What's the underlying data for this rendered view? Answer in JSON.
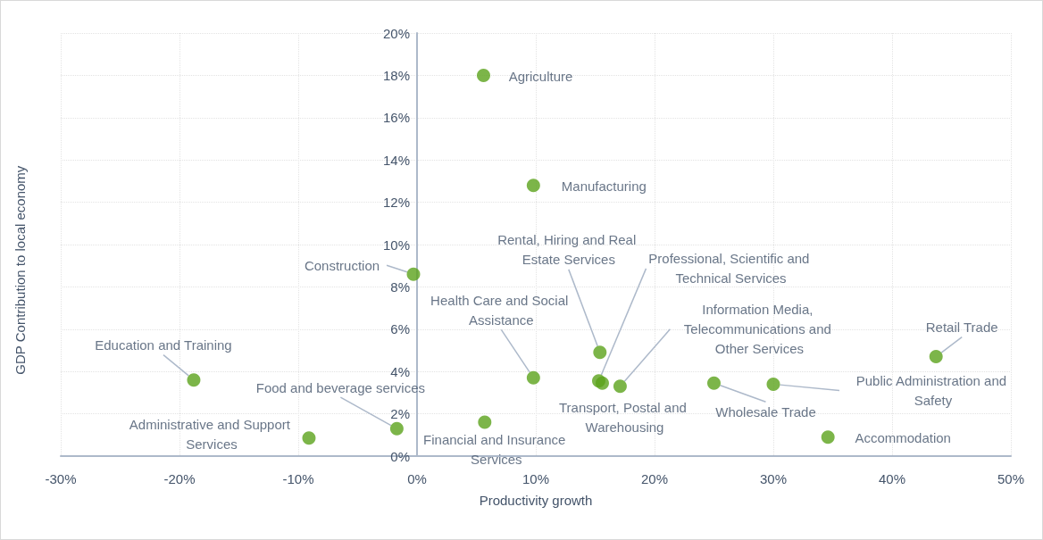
{
  "chart_data": {
    "type": "scatter",
    "xlabel": "Productivity growth",
    "ylabel": "GDP Contribution to local economy",
    "x": [
      5.6,
      9.8,
      -0.3,
      -18.8,
      -9.1,
      -1.7,
      5.7,
      9.8,
      15.4,
      15.3,
      15.6,
      17.1,
      25.0,
      30.0,
      43.7,
      34.6
    ],
    "series": [
      {
        "color": "#5ba31c",
        "values": [
          18.0,
          12.8,
          8.6,
          3.6,
          0.85,
          1.3,
          1.6,
          3.7,
          4.9,
          3.55,
          3.45,
          3.3,
          3.45,
          3.4,
          4.7,
          0.9
        ]
      }
    ],
    "xlim": [
      -30,
      50
    ],
    "ylim": [
      0,
      20
    ],
    "xticks": [
      {
        "value": -30,
        "label": "-30%"
      },
      {
        "value": -20,
        "label": "-20%"
      },
      {
        "value": -10,
        "label": "-10%"
      },
      {
        "value": 0,
        "label": "0%"
      },
      {
        "value": 10,
        "label": "10%"
      },
      {
        "value": 20,
        "label": "20%"
      },
      {
        "value": 30,
        "label": "30%"
      },
      {
        "value": 40,
        "label": "40%"
      },
      {
        "value": 50,
        "label": "50%"
      }
    ],
    "yticks": [
      {
        "value": 0,
        "label": "0%"
      },
      {
        "value": 2,
        "label": "2%"
      },
      {
        "value": 4,
        "label": "4%"
      },
      {
        "value": 6,
        "label": "6%"
      },
      {
        "value": 8,
        "label": "8%"
      },
      {
        "value": 10,
        "label": "10%"
      },
      {
        "value": 12,
        "label": "12%"
      },
      {
        "value": 14,
        "label": "14%"
      },
      {
        "value": 16,
        "label": "16%"
      },
      {
        "value": 18,
        "label": "18%"
      },
      {
        "value": 20,
        "label": "20%"
      }
    ],
    "grid": true,
    "marker": "circle",
    "annotations": [
      {
        "text": "Agriculture",
        "x": 5.6,
        "y": 18.0
      },
      {
        "text": "Manufacturing",
        "x": 9.8,
        "y": 12.8
      },
      {
        "text": "Construction",
        "x": -0.3,
        "y": 8.6
      },
      {
        "text": "Education and Training",
        "x": -18.8,
        "y": 3.6
      },
      {
        "text": "Administrative and Support Services",
        "x": -9.1,
        "y": 0.85
      },
      {
        "text": "Food and beverage services",
        "x": -1.7,
        "y": 1.3
      },
      {
        "text": "Financial and Insurance Services",
        "x": 5.7,
        "y": 1.6
      },
      {
        "text": "Health Care and Social Assistance",
        "x": 9.8,
        "y": 3.7
      },
      {
        "text": "Rental, Hiring and Real Estate Services",
        "x": 15.4,
        "y": 4.9
      },
      {
        "text": "Professional, Scientific and Technical Services",
        "x": 15.3,
        "y": 3.55
      },
      {
        "text": "Transport, Postal and Warehousing",
        "x": 15.6,
        "y": 3.45
      },
      {
        "text": "Information Media, Telecommunications and Other Services",
        "x": 17.1,
        "y": 3.3
      },
      {
        "text": "Wholesale Trade",
        "x": 25.0,
        "y": 3.45
      },
      {
        "text": "Public Administration and Safety",
        "x": 30.0,
        "y": 3.4
      },
      {
        "text": "Retail Trade",
        "x": 43.7,
        "y": 4.7
      },
      {
        "text": "Accommodation",
        "x": 34.6,
        "y": 0.9
      }
    ]
  }
}
